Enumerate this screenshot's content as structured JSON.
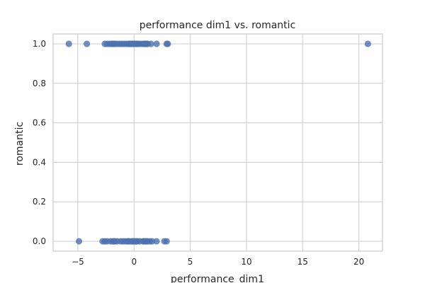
{
  "chart_data": {
    "type": "scatter",
    "title": "performance dim1 vs. romantic",
    "xlabel": "performance_dim1",
    "ylabel": "romantic",
    "xlim": [
      -7.2,
      22.1
    ],
    "ylim": [
      -0.05,
      1.05
    ],
    "xticks": [
      -5,
      0,
      5,
      10,
      15,
      20
    ],
    "xtick_labels": [
      "−5",
      "0",
      "5",
      "10",
      "15",
      "20"
    ],
    "yticks": [
      0.0,
      0.2,
      0.4,
      0.6,
      0.8,
      1.0
    ],
    "ytick_labels": [
      "0.0",
      "0.2",
      "0.4",
      "0.6",
      "0.8",
      "1.0"
    ],
    "grid": true,
    "legend": "none",
    "colors": {
      "point": "#4c72b0",
      "grid": "#cccccc",
      "axes_edge": "#cccccc",
      "text": "#262626"
    },
    "series": [
      {
        "x": [
          -5.8,
          -4.2,
          -2.6,
          -2.4,
          -2.2,
          -2.0,
          -1.9,
          -1.8,
          -1.7,
          -1.5,
          -1.3,
          -1.1,
          -0.9,
          -0.7,
          -0.5,
          -0.4,
          -0.3,
          -0.2,
          -0.1,
          0.0,
          0.1,
          0.2,
          0.3,
          0.4,
          0.6,
          0.8,
          0.9,
          1.0,
          1.1,
          1.2,
          1.5,
          2.0,
          2.9,
          3.0,
          20.8
        ],
        "y": [
          1,
          1,
          1,
          1,
          1,
          1,
          1,
          1,
          1,
          1,
          1,
          1,
          1,
          1,
          1,
          1,
          1,
          1,
          1,
          1,
          1,
          1,
          1,
          1,
          1,
          1,
          1,
          1,
          1,
          1,
          1,
          1,
          1,
          1,
          1
        ]
      },
      {
        "x": [
          -4.9,
          -2.8,
          -2.6,
          -2.4,
          -2.1,
          -1.9,
          -1.8,
          -1.7,
          -1.5,
          -1.2,
          -1.0,
          -0.8,
          -0.6,
          -0.5,
          -0.4,
          -0.2,
          -0.1,
          0.0,
          0.1,
          0.2,
          0.3,
          0.5,
          0.8,
          0.9,
          1.0,
          1.1,
          1.2,
          1.4,
          1.6,
          2.0,
          2.7,
          2.9
        ],
        "y": [
          0,
          0,
          0,
          0,
          0,
          0,
          0,
          0,
          0,
          0,
          0,
          0,
          0,
          0,
          0,
          0,
          0,
          0,
          0,
          0,
          0,
          0,
          0,
          0,
          0,
          0,
          0,
          0,
          0,
          0,
          0,
          0
        ]
      }
    ]
  }
}
